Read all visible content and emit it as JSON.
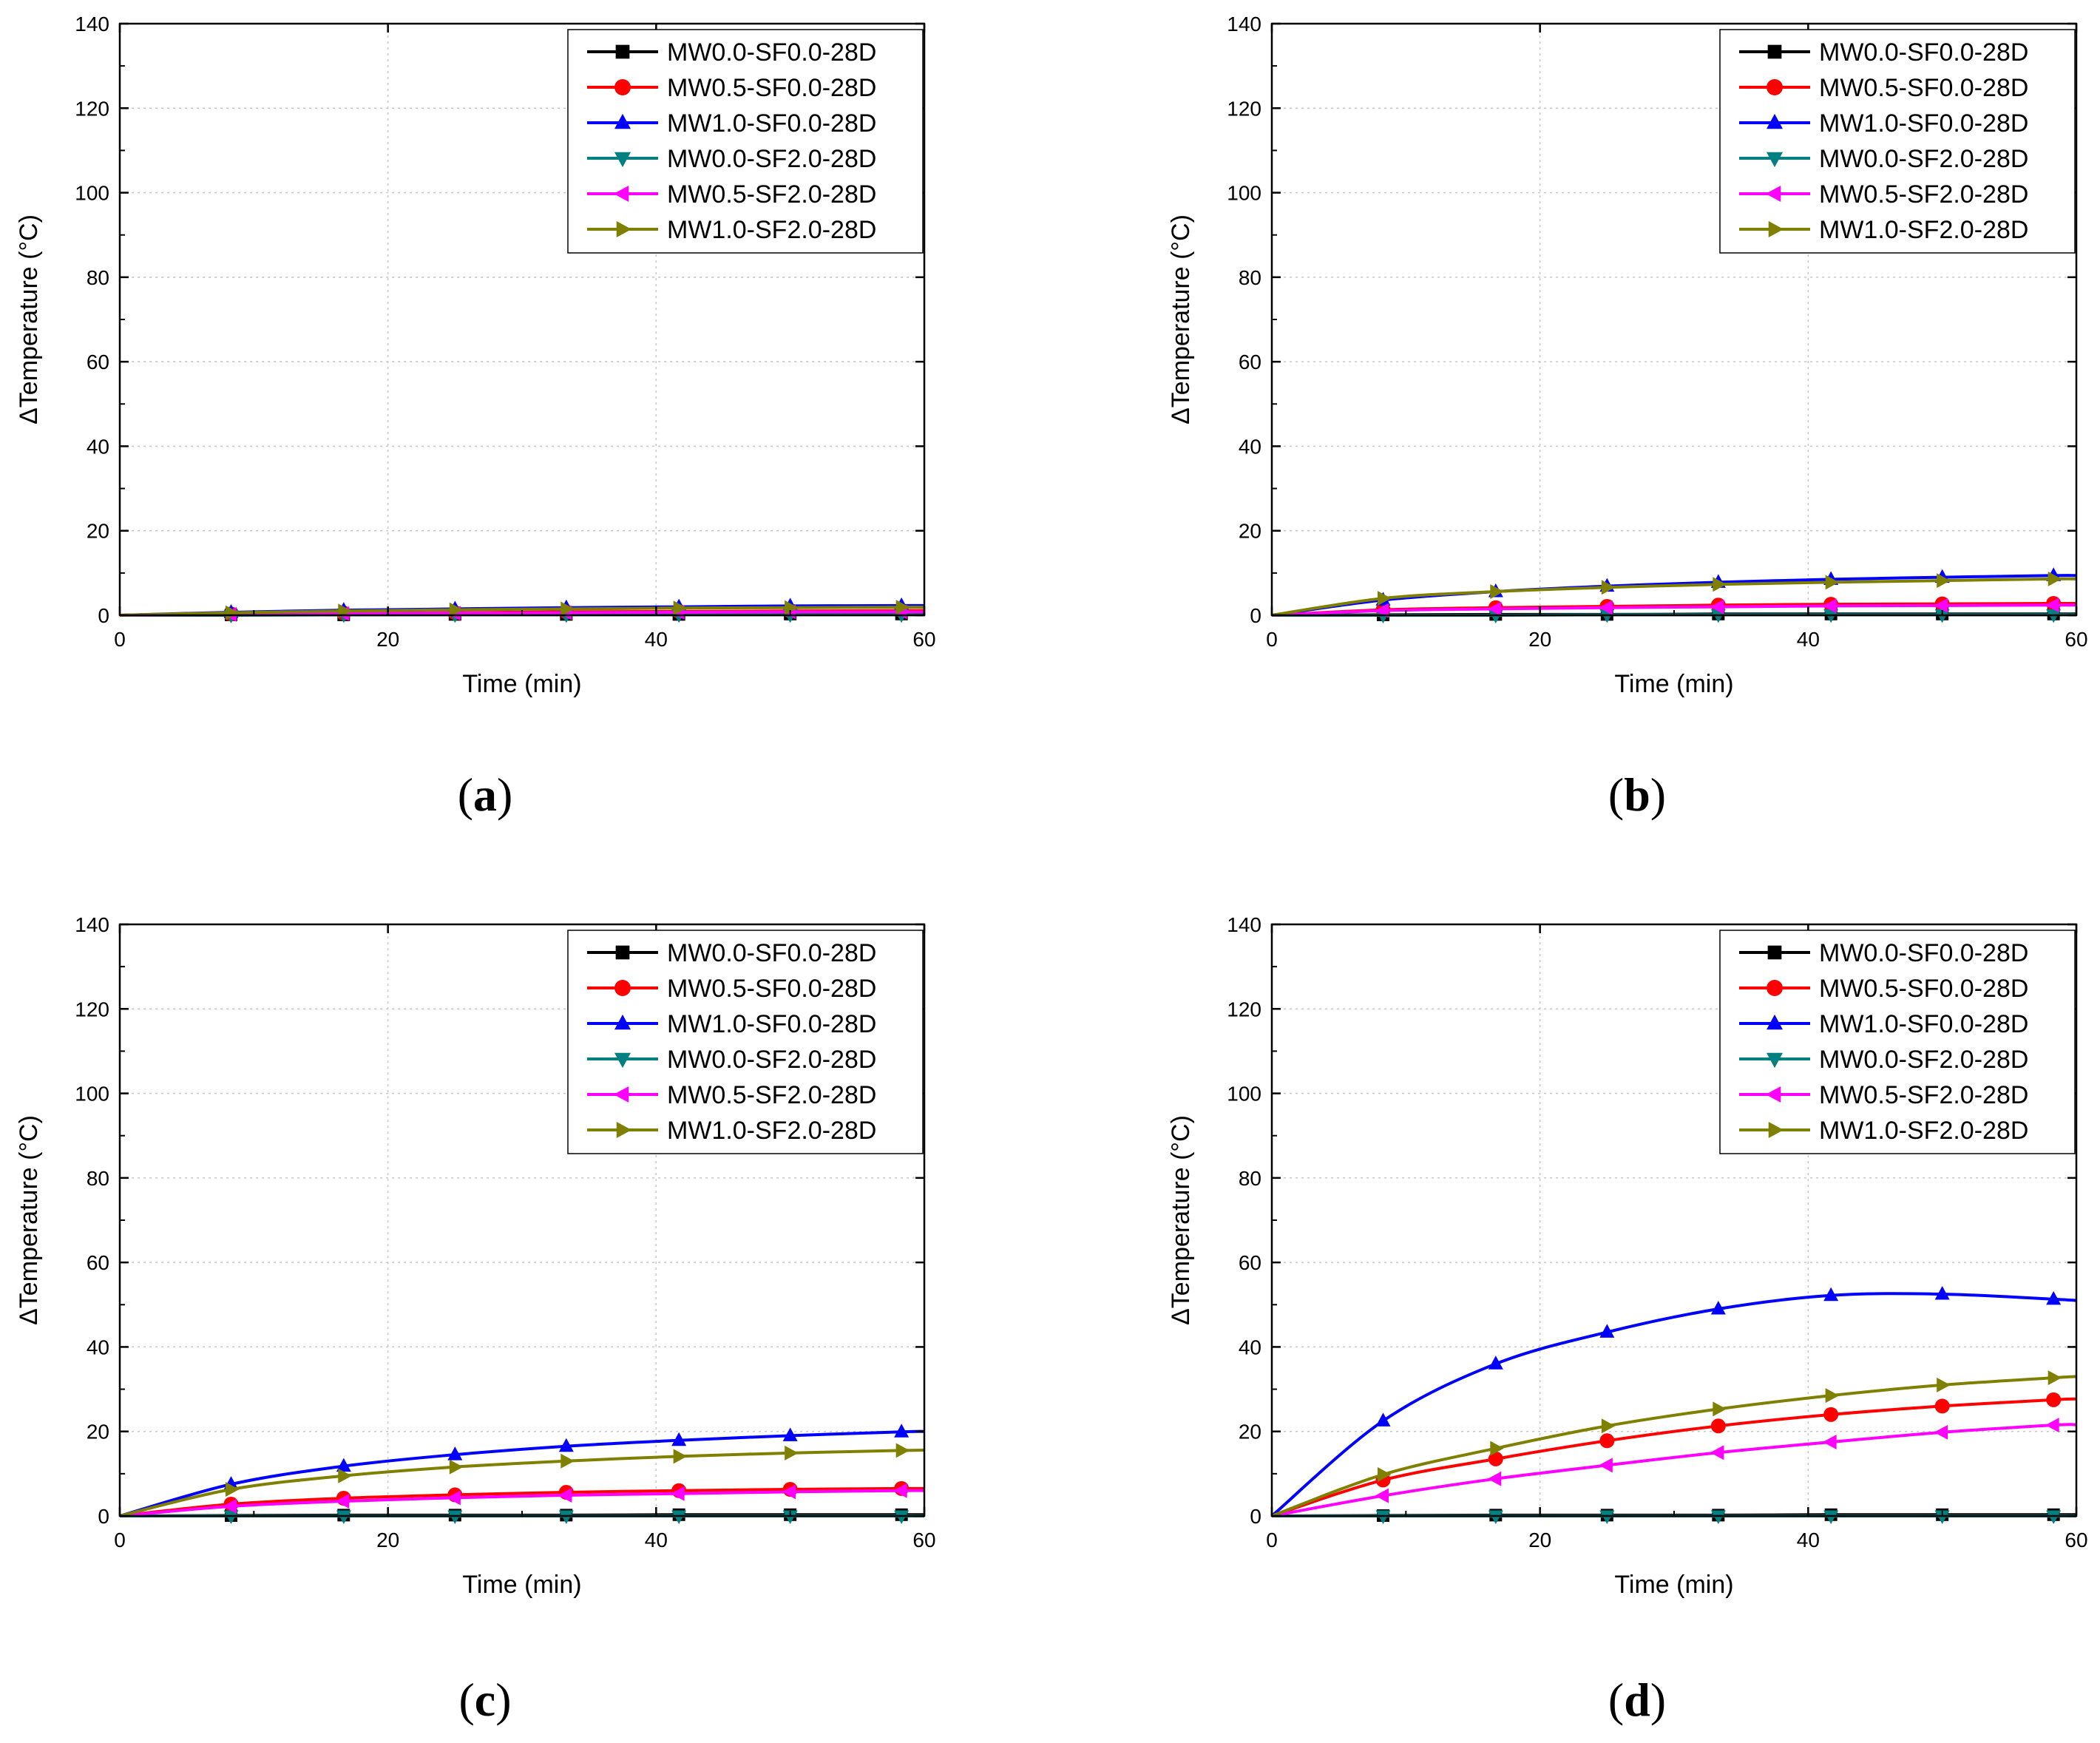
{
  "chart_data": [
    {
      "type": "line",
      "panel_label": "a",
      "xlabel": "Time (min)",
      "ylabel": "ΔTemperature (°C)",
      "xlim": [
        0,
        60
      ],
      "ylim": [
        0,
        140
      ],
      "xticks": [
        0,
        20,
        40,
        60
      ],
      "yticks": [
        0,
        20,
        40,
        60,
        80,
        100,
        120,
        140
      ],
      "grid": true,
      "legend_position": "top-right",
      "x": [
        0,
        8.3,
        16.7,
        25,
        33.3,
        41.7,
        50,
        58.3,
        60
      ],
      "series": [
        {
          "name": "MW0.0-SF0.0-28D",
          "color": "#000000",
          "marker": "square",
          "values": [
            0,
            0.1,
            0.1,
            0.2,
            0.2,
            0.2,
            0.3,
            0.3,
            0.3
          ]
        },
        {
          "name": "MW0.5-SF0.0-28D",
          "color": "#ff0000",
          "marker": "circle",
          "values": [
            0,
            0.3,
            0.5,
            0.6,
            0.8,
            0.9,
            1.0,
            1.1,
            1.1
          ]
        },
        {
          "name": "MW1.0-SF0.0-28D",
          "color": "#0000ff",
          "marker": "triangle-up",
          "values": [
            0,
            0.7,
            1.2,
            1.5,
            1.8,
            2.0,
            2.2,
            2.3,
            2.3
          ]
        },
        {
          "name": "MW0.0-SF2.0-28D",
          "color": "#008080",
          "marker": "triangle-down",
          "values": [
            0,
            0,
            0.1,
            0.1,
            0.1,
            0.1,
            0.1,
            0.1,
            0.1
          ]
        },
        {
          "name": "MW0.5-SF2.0-28D",
          "color": "#ff00ff",
          "marker": "triangle-left",
          "values": [
            0,
            0.2,
            0.4,
            0.5,
            0.6,
            0.7,
            0.8,
            0.8,
            0.8
          ]
        },
        {
          "name": "MW1.0-SF2.0-28D",
          "color": "#808000",
          "marker": "triangle-right",
          "values": [
            0,
            0.6,
            1.0,
            1.3,
            1.5,
            1.7,
            1.8,
            1.9,
            1.9
          ]
        }
      ]
    },
    {
      "type": "line",
      "panel_label": "b",
      "xlabel": "Time (min)",
      "ylabel": "ΔTemperature (°C)",
      "xlim": [
        0,
        60
      ],
      "ylim": [
        0,
        140
      ],
      "xticks": [
        0,
        20,
        40,
        60
      ],
      "yticks": [
        0,
        20,
        40,
        60,
        80,
        100,
        120,
        140
      ],
      "grid": true,
      "legend_position": "top-right",
      "x": [
        0,
        8.3,
        16.7,
        25,
        33.3,
        41.7,
        50,
        58.3,
        60
      ],
      "series": [
        {
          "name": "MW0.0-SF0.0-28D",
          "color": "#000000",
          "marker": "square",
          "values": [
            0,
            0.1,
            0.2,
            0.2,
            0.3,
            0.3,
            0.3,
            0.3,
            0.3
          ]
        },
        {
          "name": "MW0.5-SF0.0-28D",
          "color": "#ff0000",
          "marker": "circle",
          "values": [
            0,
            1.3,
            1.8,
            2.1,
            2.4,
            2.6,
            2.7,
            2.8,
            2.8
          ]
        },
        {
          "name": "MW1.0-SF0.0-28D",
          "color": "#0000ff",
          "marker": "triangle-up",
          "values": [
            0,
            3.6,
            5.6,
            6.9,
            7.8,
            8.5,
            9.0,
            9.4,
            9.4
          ]
        },
        {
          "name": "MW0.0-SF2.0-28D",
          "color": "#008080",
          "marker": "triangle-down",
          "values": [
            0,
            0,
            0,
            0.1,
            0.1,
            0.1,
            0.1,
            0.1,
            0.1
          ]
        },
        {
          "name": "MW0.5-SF2.0-28D",
          "color": "#ff00ff",
          "marker": "triangle-left",
          "values": [
            0,
            1.1,
            1.5,
            1.8,
            2.0,
            2.2,
            2.3,
            2.4,
            2.4
          ]
        },
        {
          "name": "MW1.0-SF2.0-28D",
          "color": "#808000",
          "marker": "triangle-right",
          "values": [
            0,
            4.0,
            5.6,
            6.6,
            7.3,
            7.8,
            8.2,
            8.6,
            8.6
          ]
        }
      ]
    },
    {
      "type": "line",
      "panel_label": "c",
      "xlabel": "Time (min)",
      "ylabel": "ΔTemperature (°C)",
      "xlim": [
        0,
        60
      ],
      "ylim": [
        0,
        140
      ],
      "xticks": [
        0,
        20,
        40,
        60
      ],
      "yticks": [
        0,
        20,
        40,
        60,
        80,
        100,
        120,
        140
      ],
      "grid": true,
      "legend_position": "top-right",
      "x": [
        0,
        8.3,
        16.7,
        25,
        33.3,
        41.7,
        50,
        58.3,
        60
      ],
      "series": [
        {
          "name": "MW0.0-SF0.0-28D",
          "color": "#000000",
          "marker": "square",
          "values": [
            0,
            0.1,
            0.2,
            0.2,
            0.2,
            0.3,
            0.3,
            0.3,
            0.3
          ]
        },
        {
          "name": "MW0.5-SF0.0-28D",
          "color": "#ff0000",
          "marker": "circle",
          "values": [
            0,
            2.8,
            4.2,
            5.0,
            5.6,
            6.0,
            6.3,
            6.5,
            6.5
          ]
        },
        {
          "name": "MW1.0-SF0.0-28D",
          "color": "#0000ff",
          "marker": "triangle-up",
          "values": [
            0,
            7.5,
            11.8,
            14.5,
            16.5,
            17.9,
            19.0,
            19.9,
            20.0
          ]
        },
        {
          "name": "MW0.0-SF2.0-28D",
          "color": "#008080",
          "marker": "triangle-down",
          "values": [
            0,
            0,
            0,
            0,
            0,
            0,
            0,
            0,
            0
          ]
        },
        {
          "name": "MW0.5-SF2.0-28D",
          "color": "#ff00ff",
          "marker": "triangle-left",
          "values": [
            0,
            2.3,
            3.5,
            4.3,
            4.9,
            5.3,
            5.7,
            6.0,
            6.0
          ]
        },
        {
          "name": "MW1.0-SF2.0-28D",
          "color": "#808000",
          "marker": "triangle-right",
          "values": [
            0,
            6.3,
            9.5,
            11.6,
            13.0,
            14.1,
            14.9,
            15.5,
            15.6
          ]
        }
      ]
    },
    {
      "type": "line",
      "panel_label": "d",
      "xlabel": "Time (min)",
      "ylabel": "ΔTemperature (°C)",
      "xlim": [
        0,
        60
      ],
      "ylim": [
        0,
        140
      ],
      "xticks": [
        0,
        20,
        40,
        60
      ],
      "yticks": [
        0,
        20,
        40,
        60,
        80,
        100,
        120,
        140
      ],
      "grid": true,
      "legend_position": "top-right",
      "x": [
        0,
        8.3,
        16.7,
        25,
        33.3,
        41.7,
        50,
        58.3,
        60
      ],
      "series": [
        {
          "name": "MW0.0-SF0.0-28D",
          "color": "#000000",
          "marker": "square",
          "values": [
            0,
            0.1,
            0.2,
            0.2,
            0.2,
            0.3,
            0.3,
            0.3,
            0.3
          ]
        },
        {
          "name": "MW0.5-SF0.0-28D",
          "color": "#ff0000",
          "marker": "circle",
          "values": [
            0,
            8.5,
            13.5,
            17.8,
            21.3,
            24.0,
            26.0,
            27.5,
            27.7
          ]
        },
        {
          "name": "MW1.0-SF0.0-28D",
          "color": "#0000ff",
          "marker": "triangle-up",
          "values": [
            0,
            22.5,
            36.0,
            43.5,
            49.0,
            52.2,
            52.5,
            51.3,
            51.0
          ]
        },
        {
          "name": "MW0.0-SF2.0-28D",
          "color": "#008080",
          "marker": "triangle-down",
          "values": [
            0,
            0,
            0,
            0,
            0,
            0,
            0,
            0,
            0
          ]
        },
        {
          "name": "MW0.5-SF2.0-28D",
          "color": "#ff00ff",
          "marker": "triangle-left",
          "values": [
            0,
            4.8,
            8.8,
            12.0,
            15.0,
            17.5,
            19.8,
            21.5,
            21.6
          ]
        },
        {
          "name": "MW1.0-SF2.0-28D",
          "color": "#808000",
          "marker": "triangle-right",
          "values": [
            0,
            9.8,
            16.0,
            21.3,
            25.3,
            28.5,
            31.0,
            32.7,
            33.0
          ]
        }
      ]
    }
  ]
}
